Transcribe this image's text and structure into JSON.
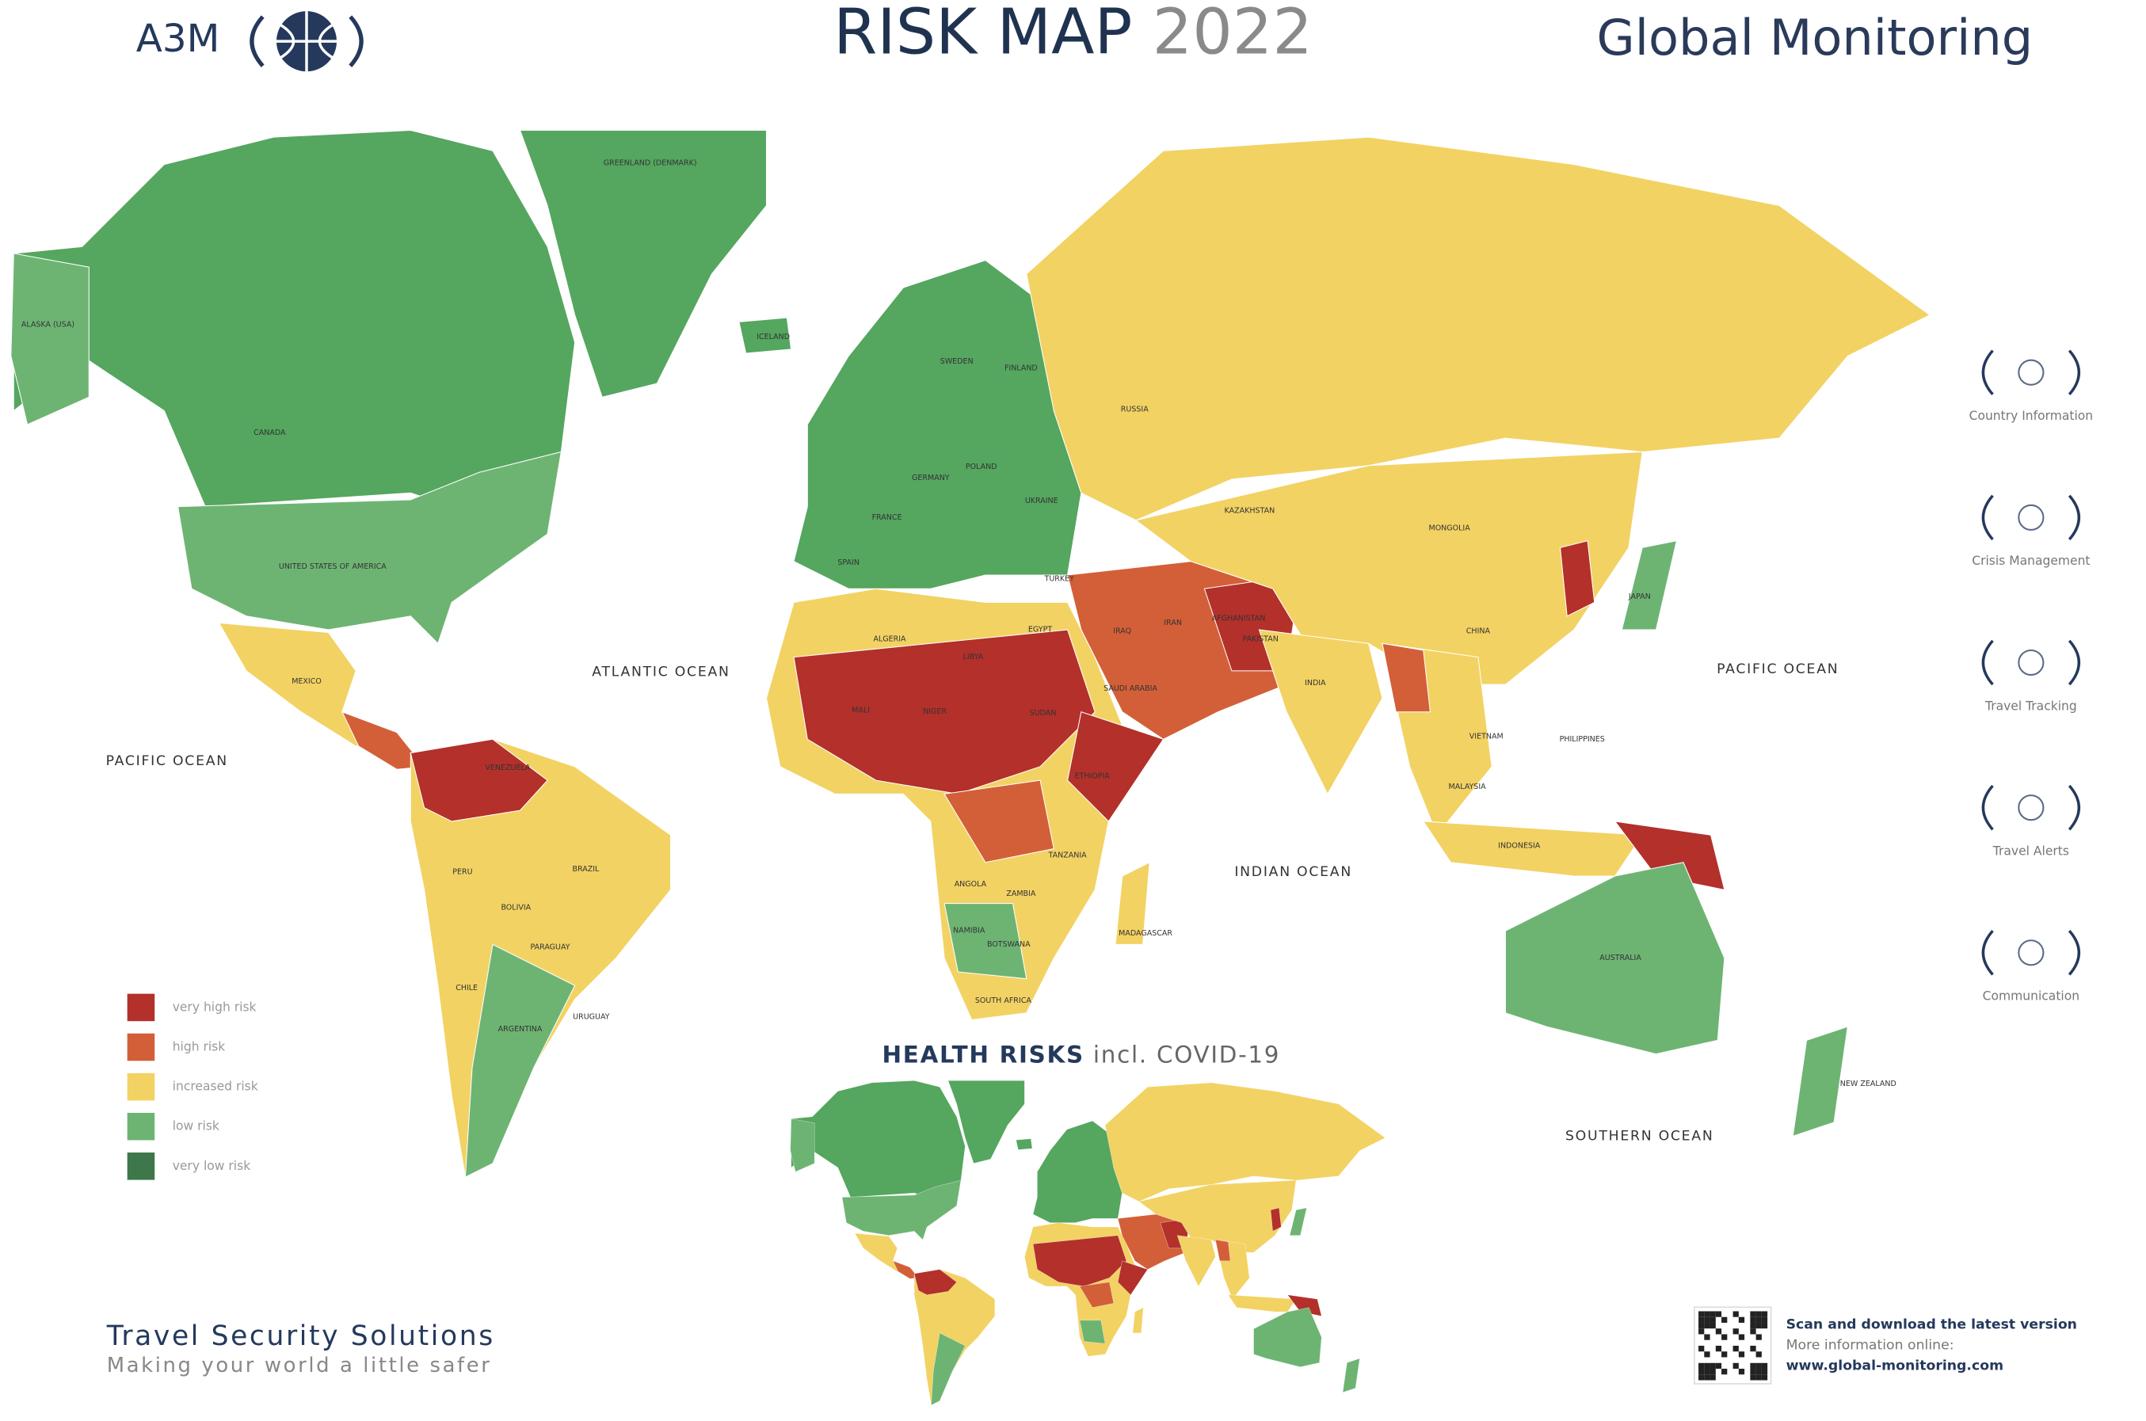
{
  "header": {
    "brand": "A3M",
    "title": "RISK MAP",
    "year": "2022",
    "partner": "Global Monitoring"
  },
  "oceans": [
    "ATLANTIC OCEAN",
    "PACIFIC OCEAN",
    "PACIFIC OCEAN",
    "INDIAN OCEAN",
    "SOUTHERN OCEAN"
  ],
  "countries": [
    "CANADA",
    "UNITED STATES OF AMERICA",
    "ALASKA (USA)",
    "GREENLAND (DENMARK)",
    "MEXICO",
    "VENEZUELA",
    "PERU",
    "BRAZIL",
    "BOLIVIA",
    "ARGENTINA",
    "CHILE",
    "PARAGUAY",
    "URUGUAY",
    "ICELAND",
    "SWEDEN",
    "FINLAND",
    "POLAND",
    "GERMANY",
    "FRANCE",
    "SPAIN",
    "UKRAINE",
    "TURKEY",
    "RUSSIA",
    "KAZAKHSTAN",
    "MONGOLIA",
    "CHINA",
    "INDIA",
    "IRAN",
    "IRAQ",
    "AFGHANISTAN",
    "PAKISTAN",
    "SAUDI ARABIA",
    "ALGERIA",
    "LIBYA",
    "EGYPT",
    "MALI",
    "NIGER",
    "SUDAN",
    "ETHIOPIA",
    "TANZANIA",
    "ANGOLA",
    "ZAMBIA",
    "NAMIBIA",
    "BOTSWANA",
    "SOUTH AFRICA",
    "MADAGASCAR",
    "PHILIPPINES",
    "VIETNAM",
    "MALAYSIA",
    "INDONESIA",
    "JAPAN",
    "AUSTRALIA",
    "NEW ZEALAND"
  ],
  "inset": {
    "title": "HEALTH RISKS",
    "subtitle": "incl. COVID-19"
  },
  "legend": [
    {
      "label": "very high risk",
      "color": "#b3302b"
    },
    {
      "label": "high risk",
      "color": "#d35f38"
    },
    {
      "label": "increased risk",
      "color": "#f2d263"
    },
    {
      "label": "low risk",
      "color": "#6db473"
    },
    {
      "label": "very low risk",
      "color": "#3e774a"
    }
  ],
  "sidebar": [
    "Country Information",
    "Crisis Management",
    "Travel Tracking",
    "Travel Alerts",
    "Communication"
  ],
  "footer": {
    "tagline": "Travel Security Solutions",
    "slogan": "Making your world a little safer",
    "qr_lines": [
      "Scan and download the latest version",
      "More information online:",
      "www.global-monitoring.com"
    ]
  }
}
